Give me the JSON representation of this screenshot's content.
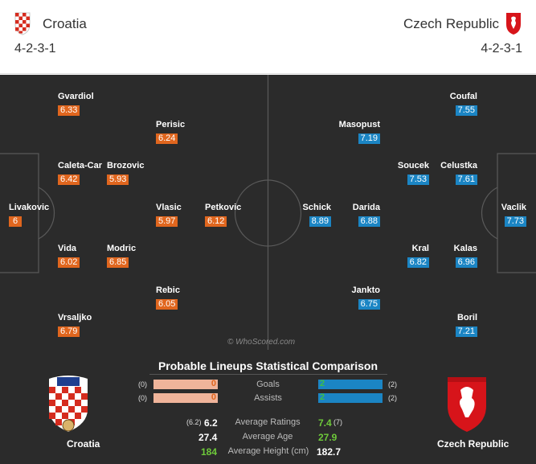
{
  "header": {
    "home_team": "Croatia",
    "away_team": "Czech Republic",
    "home_formation": "4-2-3-1",
    "away_formation": "4-2-3-1"
  },
  "pitch": {
    "watermark": "© WhoScored.com",
    "home_players": [
      {
        "name": "Gvardiol",
        "rating": "6.33"
      },
      {
        "name": "Perisic",
        "rating": "6.24"
      },
      {
        "name": "Caleta-Car",
        "rating": "6.42"
      },
      {
        "name": "Brozovic",
        "rating": "5.93"
      },
      {
        "name": "Livakovic",
        "rating": "6"
      },
      {
        "name": "Vlasic",
        "rating": "5.97"
      },
      {
        "name": "Petkovic",
        "rating": "6.12"
      },
      {
        "name": "Vida",
        "rating": "6.02"
      },
      {
        "name": "Modric",
        "rating": "6.85"
      },
      {
        "name": "Rebic",
        "rating": "6.05"
      },
      {
        "name": "Vrsaljko",
        "rating": "6.79"
      }
    ],
    "away_players": [
      {
        "name": "Coufal",
        "rating": "7.55"
      },
      {
        "name": "Masopust",
        "rating": "7.19"
      },
      {
        "name": "Soucek",
        "rating": "7.53"
      },
      {
        "name": "Celustka",
        "rating": "7.61"
      },
      {
        "name": "Schick",
        "rating": "8.89"
      },
      {
        "name": "Darida",
        "rating": "6.88"
      },
      {
        "name": "Vaclik",
        "rating": "7.73"
      },
      {
        "name": "Kral",
        "rating": "6.82"
      },
      {
        "name": "Kalas",
        "rating": "6.96"
      },
      {
        "name": "Jankto",
        "rating": "6.75"
      },
      {
        "name": "Boril",
        "rating": "7.21"
      }
    ]
  },
  "comparison": {
    "title": "Probable Lineups Statistical Comparison",
    "goals": {
      "label": "Goals",
      "home": "0",
      "away": "2",
      "home_paren": "(0)",
      "away_paren": "(2)"
    },
    "assists": {
      "label": "Assists",
      "home": "0",
      "away": "2",
      "home_paren": "(0)",
      "away_paren": "(2)"
    },
    "avg_ratings": {
      "label": "Average Ratings",
      "home_paren": "(6.2)",
      "home": "6.2",
      "away": "7.4",
      "away_paren": "(7)"
    },
    "avg_age": {
      "label": "Average Age",
      "home": "27.4",
      "away": "27.9"
    },
    "avg_height": {
      "label": "Average Height (cm)",
      "home": "184",
      "away": "182.7"
    },
    "home_name": "Croatia",
    "away_name": "Czech Republic"
  },
  "colors": {
    "home_rating": "#e0661e",
    "away_rating": "#1b85c4",
    "pitch": "#2b2b2b",
    "highlight_green": "#6ec93a"
  }
}
